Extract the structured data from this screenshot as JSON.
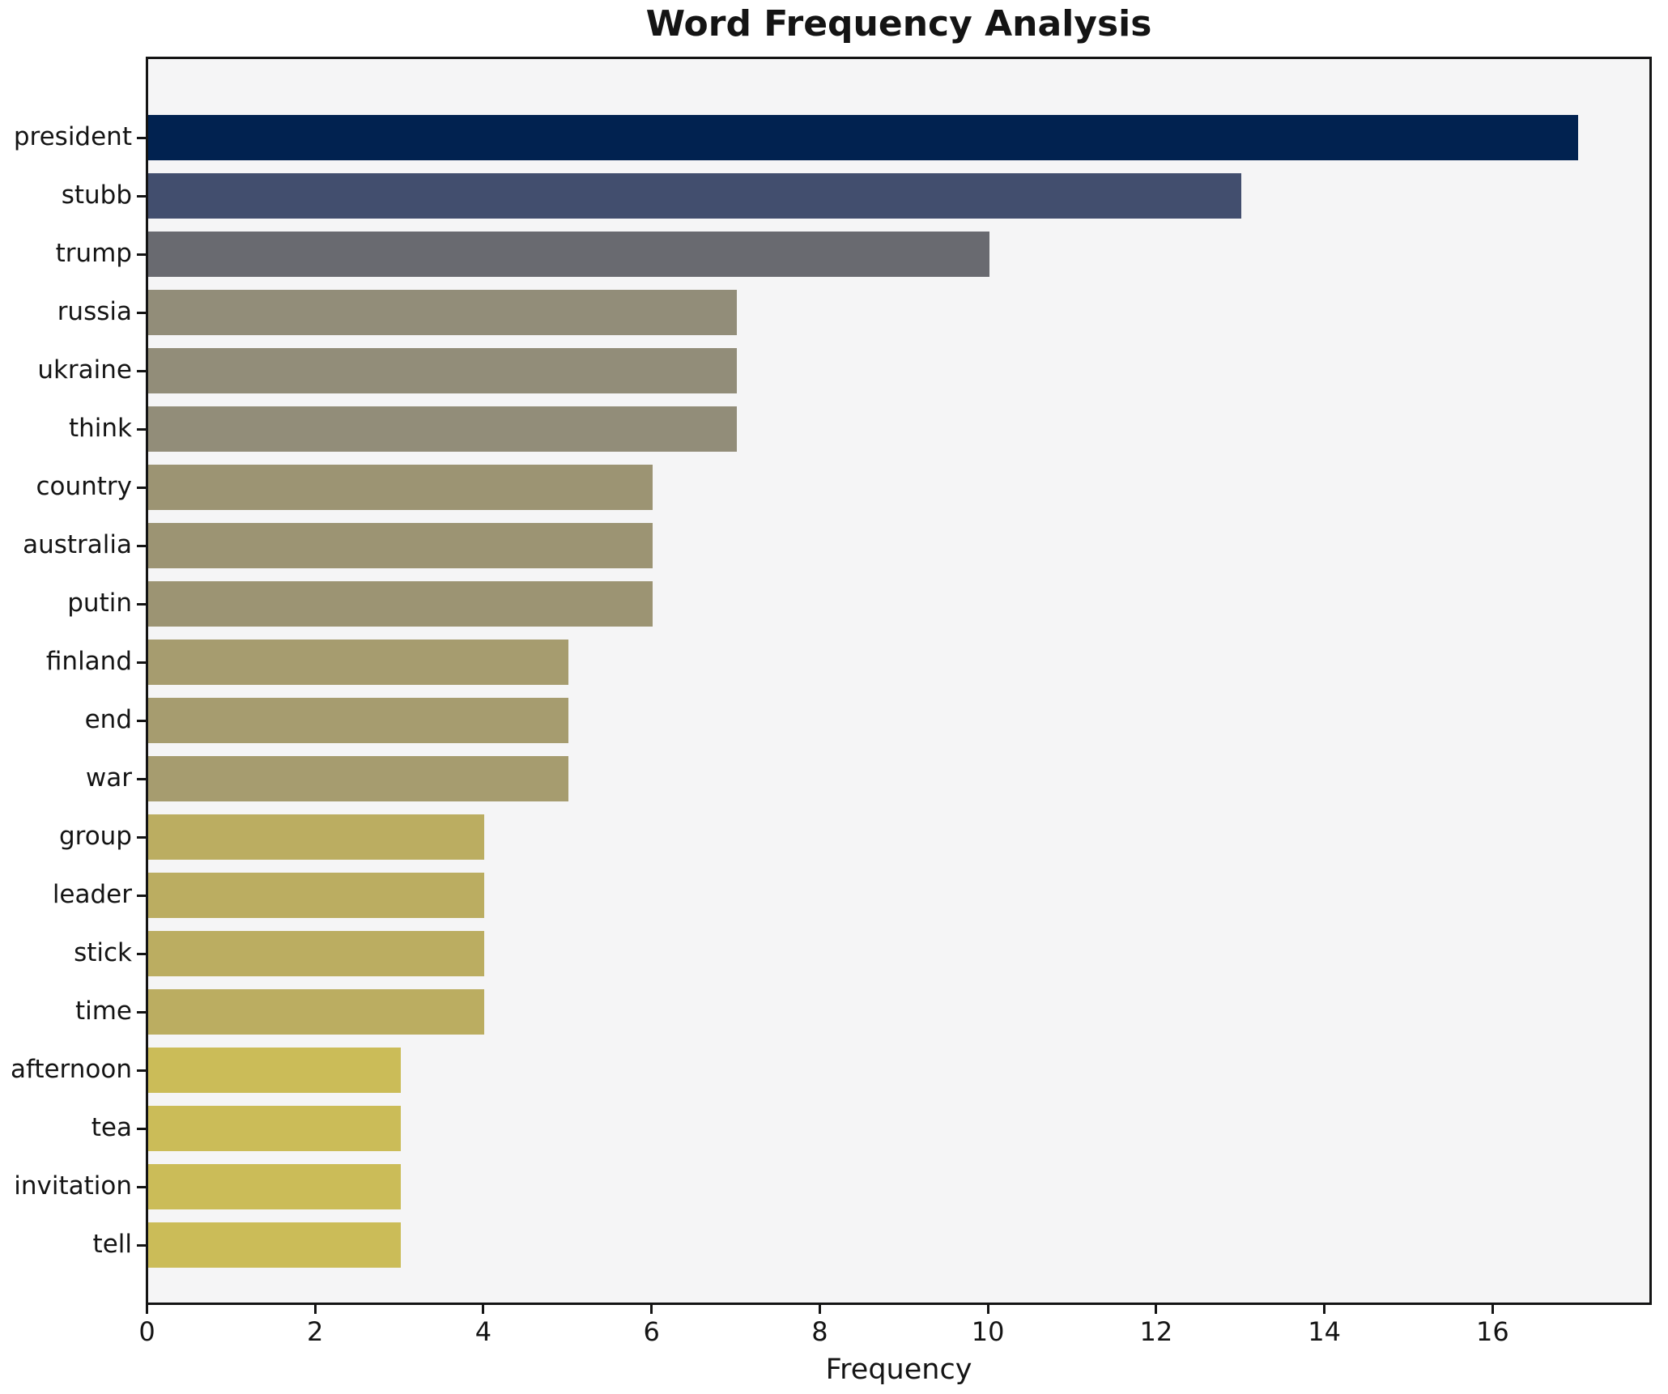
{
  "title": "Word Frequency Analysis",
  "xlabel": "Frequency",
  "chart_data": {
    "type": "bar",
    "orientation": "horizontal",
    "title": "Word Frequency Analysis",
    "xlabel": "Frequency",
    "ylabel": "",
    "categories": [
      "president",
      "stubb",
      "trump",
      "russia",
      "ukraine",
      "think",
      "country",
      "australia",
      "putin",
      "finland",
      "end",
      "war",
      "group",
      "leader",
      "stick",
      "time",
      "afternoon",
      "tea",
      "invitation",
      "tell"
    ],
    "values": [
      17,
      13,
      10,
      7,
      7,
      7,
      6,
      6,
      6,
      5,
      5,
      5,
      4,
      4,
      4,
      4,
      3,
      3,
      3,
      3
    ],
    "bar_colors": [
      "#012250",
      "#424e6e",
      "#696a70",
      "#928d79",
      "#928d79",
      "#928d79",
      "#9c9473",
      "#9c9473",
      "#9c9473",
      "#a69c6f",
      "#a69c6f",
      "#a69c6f",
      "#bbad61",
      "#bbad61",
      "#bbad61",
      "#bbad61",
      "#cbbc58",
      "#cbbc58",
      "#cbbc58",
      "#cbbc58"
    ],
    "xticks": [
      0,
      2,
      4,
      6,
      8,
      10,
      12,
      14,
      16
    ],
    "xlim": [
      0,
      17.85
    ],
    "grid": false,
    "legend": "none",
    "plot_background": "#f5f5f6",
    "figure_background": "#ffffff",
    "axis_color": "#141414"
  }
}
